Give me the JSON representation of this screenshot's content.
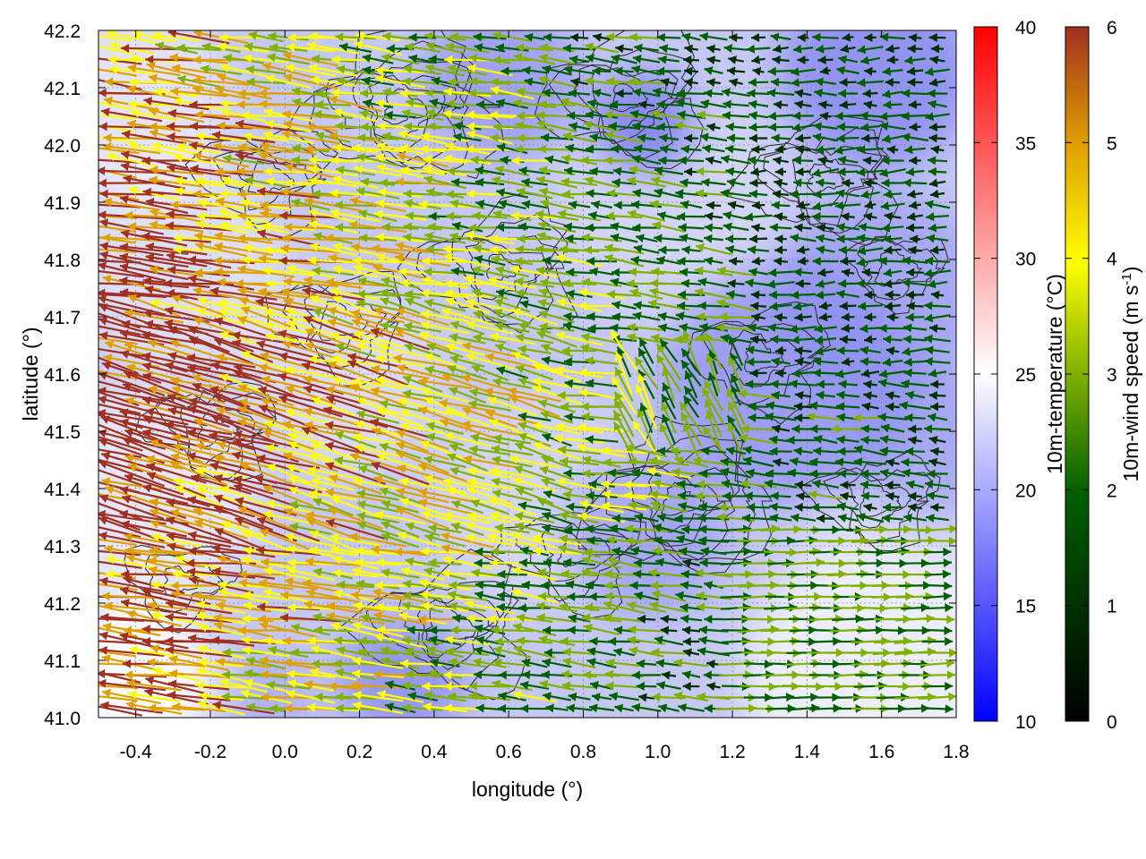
{
  "chart_data": {
    "type": "vector-field",
    "xlabel": "longitude (°)",
    "ylabel": "latitude (°)",
    "xlim": [
      -0.5,
      1.8
    ],
    "ylim": [
      41.0,
      42.2
    ],
    "xticks": [
      "-0.4",
      "-0.2",
      "0.0",
      "0.2",
      "0.4",
      "0.6",
      "0.8",
      "1.0",
      "1.2",
      "1.4",
      "1.6",
      "1.8"
    ],
    "yticks": [
      "41.0",
      "41.1",
      "41.2",
      "41.3",
      "41.4",
      "41.5",
      "41.6",
      "41.7",
      "41.8",
      "41.9",
      "42.0",
      "42.1",
      "42.2"
    ],
    "grid": true,
    "background_field": {
      "name": "10m-temperature",
      "colorbar_label": "10m-temperature (°C)",
      "range": [
        10,
        40
      ],
      "ticks": [
        "10",
        "15",
        "20",
        "25",
        "30",
        "35",
        "40"
      ],
      "colors": {
        "low": "#0000ff",
        "mid": "#ffffff",
        "high": "#ff0000"
      },
      "typical_values": [
        {
          "region": "west-lowlands",
          "value": 22
        },
        {
          "region": "east-interior",
          "value": 18
        },
        {
          "region": "southeast-coast",
          "value": 24
        }
      ]
    },
    "arrow_field": {
      "name": "10m-wind speed",
      "colorbar_label": "10m-wind speed (m s-1)",
      "range": [
        0,
        6
      ],
      "ticks": [
        "0",
        "1",
        "2",
        "3",
        "4",
        "5",
        "6"
      ],
      "colors": [
        "#000000",
        "#006000",
        "#80b000",
        "#ffff00",
        "#e0a000",
        "#a03020"
      ],
      "dominant_flow": [
        {
          "region": "west-lowlands",
          "direction": "westward",
          "speed": 6
        },
        {
          "region": "central",
          "direction": "westward",
          "speed": 3.5
        },
        {
          "region": "east-interior",
          "direction": "westward",
          "speed": 1.2
        },
        {
          "region": "southeast-coast",
          "direction": "eastward",
          "speed": 2.5
        }
      ]
    },
    "contours": {
      "color": "#333333",
      "description": "terrain elevation isolines"
    }
  }
}
